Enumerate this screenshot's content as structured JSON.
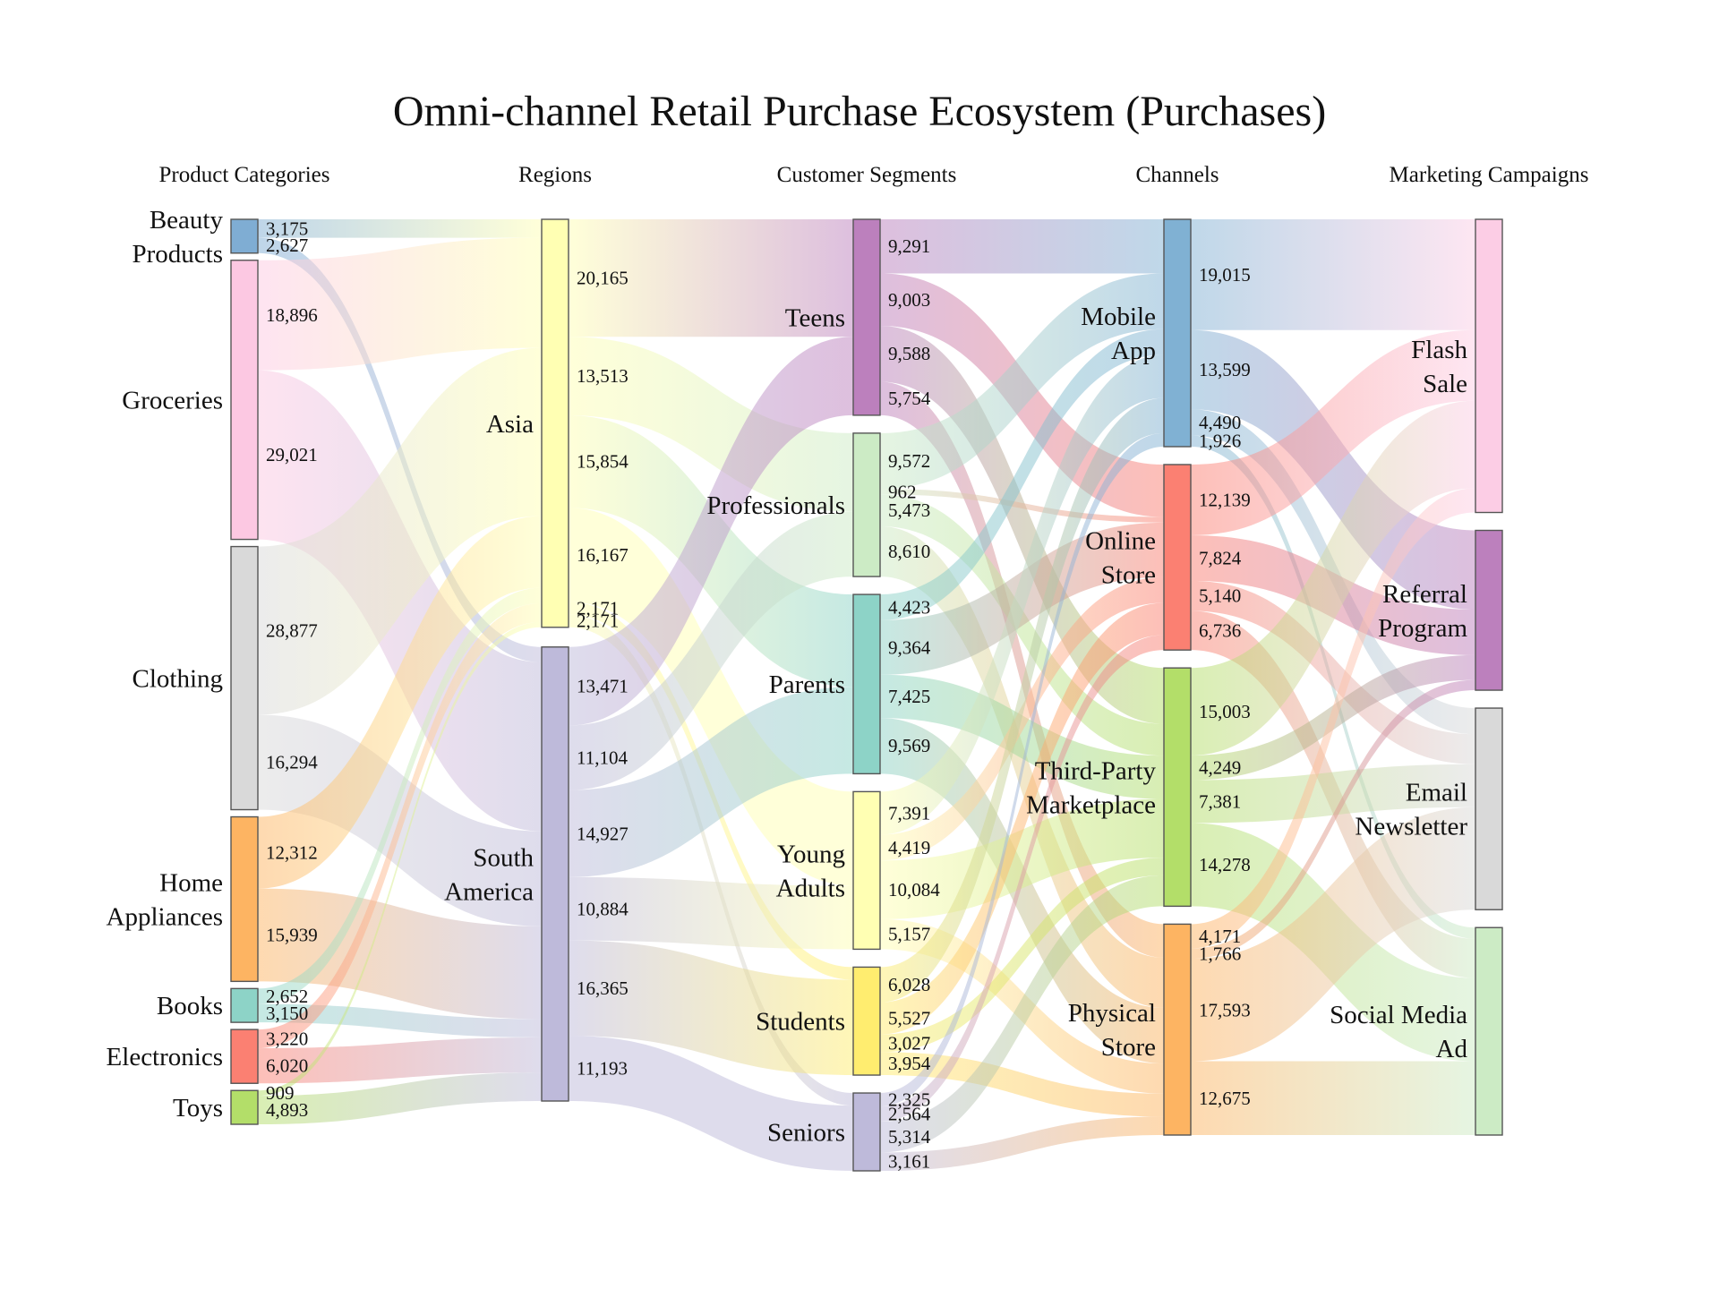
{
  "chart_data": {
    "type": "sankey",
    "title": "Omni-channel Retail Purchase Ecosystem (Purchases)",
    "stages": [
      "Product Categories",
      "Regions",
      "Customer Segments",
      "Channels",
      "Marketing Campaigns"
    ],
    "nodes": [
      {
        "id": "beauty",
        "label": "Beauty Products",
        "stage": 0,
        "color": "#7fadd3"
      },
      {
        "id": "groceries",
        "label": "Groceries",
        "stage": 0,
        "color": "#fcc8e2"
      },
      {
        "id": "clothing",
        "label": "Clothing",
        "stage": 0,
        "color": "#d9d9d9"
      },
      {
        "id": "home",
        "label": "Home Appliances",
        "stage": 0,
        "color": "#fdb462"
      },
      {
        "id": "books",
        "label": "Books",
        "stage": 0,
        "color": "#8dd3c7"
      },
      {
        "id": "electronics",
        "label": "Electronics",
        "stage": 0,
        "color": "#fb8072"
      },
      {
        "id": "toys",
        "label": "Toys",
        "stage": 0,
        "color": "#b3de69"
      },
      {
        "id": "asia",
        "label": "Asia",
        "stage": 1,
        "color": "#ffffb3"
      },
      {
        "id": "samerica",
        "label": "South America",
        "stage": 1,
        "color": "#bebada"
      },
      {
        "id": "teens",
        "label": "Teens",
        "stage": 2,
        "color": "#bc80bd"
      },
      {
        "id": "professionals",
        "label": "Professionals",
        "stage": 2,
        "color": "#ccebc5"
      },
      {
        "id": "parents",
        "label": "Parents",
        "stage": 2,
        "color": "#8dd3c7"
      },
      {
        "id": "youngadults",
        "label": "Young Adults",
        "stage": 2,
        "color": "#ffffb3"
      },
      {
        "id": "students",
        "label": "Students",
        "stage": 2,
        "color": "#ffed6f"
      },
      {
        "id": "seniors",
        "label": "Seniors",
        "stage": 2,
        "color": "#bebada"
      },
      {
        "id": "mobile",
        "label": "Mobile App",
        "stage": 3,
        "color": "#80b1d3"
      },
      {
        "id": "online",
        "label": "Online Store",
        "stage": 3,
        "color": "#fb8072"
      },
      {
        "id": "thirdparty",
        "label": "Third-Party Marketplace",
        "stage": 3,
        "color": "#b3de69"
      },
      {
        "id": "physical",
        "label": "Physical Store",
        "stage": 3,
        "color": "#fdb462"
      },
      {
        "id": "flash",
        "label": "Flash Sale",
        "stage": 4,
        "color": "#fccde5"
      },
      {
        "id": "referral",
        "label": "Referral Program",
        "stage": 4,
        "color": "#bc80bd"
      },
      {
        "id": "email",
        "label": "Email Newsletter",
        "stage": 4,
        "color": "#d9d9d9"
      },
      {
        "id": "social",
        "label": "Social Media Ad",
        "stage": 4,
        "color": "#ccebc5"
      }
    ],
    "links": [
      {
        "source": "beauty",
        "target": "asia",
        "value": 3175
      },
      {
        "source": "beauty",
        "target": "samerica",
        "value": 2627
      },
      {
        "source": "groceries",
        "target": "asia",
        "value": 18896
      },
      {
        "source": "groceries",
        "target": "samerica",
        "value": 29021
      },
      {
        "source": "clothing",
        "target": "asia",
        "value": 28877
      },
      {
        "source": "clothing",
        "target": "samerica",
        "value": 16294
      },
      {
        "source": "home",
        "target": "asia",
        "value": 12312
      },
      {
        "source": "home",
        "target": "samerica",
        "value": 15939
      },
      {
        "source": "books",
        "target": "asia",
        "value": 2652
      },
      {
        "source": "books",
        "target": "samerica",
        "value": 3150
      },
      {
        "source": "electronics",
        "target": "asia",
        "value": 3220
      },
      {
        "source": "electronics",
        "target": "samerica",
        "value": 6020
      },
      {
        "source": "toys",
        "target": "asia",
        "value": 909
      },
      {
        "source": "toys",
        "target": "samerica",
        "value": 4893
      },
      {
        "source": "asia",
        "target": "teens",
        "value": 20165
      },
      {
        "source": "asia",
        "target": "professionals",
        "value": 13513
      },
      {
        "source": "asia",
        "target": "parents",
        "value": 15854
      },
      {
        "source": "asia",
        "target": "youngadults",
        "value": 16167
      },
      {
        "source": "asia",
        "target": "students",
        "value": 2171
      },
      {
        "source": "asia",
        "target": "seniors",
        "value": 2171
      },
      {
        "source": "samerica",
        "target": "teens",
        "value": 13471
      },
      {
        "source": "samerica",
        "target": "professionals",
        "value": 11104
      },
      {
        "source": "samerica",
        "target": "parents",
        "value": 14927
      },
      {
        "source": "samerica",
        "target": "youngadults",
        "value": 10884
      },
      {
        "source": "samerica",
        "target": "students",
        "value": 16365
      },
      {
        "source": "samerica",
        "target": "seniors",
        "value": 11193
      },
      {
        "source": "teens",
        "target": "mobile",
        "value": 9291
      },
      {
        "source": "teens",
        "target": "online",
        "value": 9003
      },
      {
        "source": "teens",
        "target": "thirdparty",
        "value": 9588
      },
      {
        "source": "teens",
        "target": "physical",
        "value": 5754
      },
      {
        "source": "professionals",
        "target": "mobile",
        "value": 9572
      },
      {
        "source": "professionals",
        "target": "online",
        "value": 962
      },
      {
        "source": "professionals",
        "target": "thirdparty",
        "value": 5473
      },
      {
        "source": "professionals",
        "target": "physical",
        "value": 8610
      },
      {
        "source": "parents",
        "target": "mobile",
        "value": 4423
      },
      {
        "source": "parents",
        "target": "online",
        "value": 9364
      },
      {
        "source": "parents",
        "target": "thirdparty",
        "value": 7425
      },
      {
        "source": "parents",
        "target": "physical",
        "value": 9569
      },
      {
        "source": "youngadults",
        "target": "mobile",
        "value": 7391
      },
      {
        "source": "youngadults",
        "target": "online",
        "value": 4419
      },
      {
        "source": "youngadults",
        "target": "thirdparty",
        "value": 10084
      },
      {
        "source": "youngadults",
        "target": "physical",
        "value": 5157
      },
      {
        "source": "students",
        "target": "mobile",
        "value": 6028
      },
      {
        "source": "students",
        "target": "online",
        "value": 5527
      },
      {
        "source": "students",
        "target": "thirdparty",
        "value": 3027
      },
      {
        "source": "students",
        "target": "physical",
        "value": 3954
      },
      {
        "source": "seniors",
        "target": "mobile",
        "value": 2325
      },
      {
        "source": "seniors",
        "target": "online",
        "value": 2564
      },
      {
        "source": "seniors",
        "target": "thirdparty",
        "value": 5314
      },
      {
        "source": "seniors",
        "target": "physical",
        "value": 3161
      },
      {
        "source": "mobile",
        "target": "flash",
        "value": 19015
      },
      {
        "source": "mobile",
        "target": "referral",
        "value": 13599
      },
      {
        "source": "mobile",
        "target": "email",
        "value": 4490
      },
      {
        "source": "mobile",
        "target": "social",
        "value": 1926
      },
      {
        "source": "online",
        "target": "flash",
        "value": 12139
      },
      {
        "source": "online",
        "target": "referral",
        "value": 7824
      },
      {
        "source": "online",
        "target": "email",
        "value": 5140
      },
      {
        "source": "online",
        "target": "social",
        "value": 6736
      },
      {
        "source": "thirdparty",
        "target": "flash",
        "value": 15003
      },
      {
        "source": "thirdparty",
        "target": "referral",
        "value": 4249
      },
      {
        "source": "thirdparty",
        "target": "email",
        "value": 7381
      },
      {
        "source": "thirdparty",
        "target": "social",
        "value": 14278
      },
      {
        "source": "physical",
        "target": "flash",
        "value": 4171
      },
      {
        "source": "physical",
        "target": "referral",
        "value": 1766
      },
      {
        "source": "physical",
        "target": "email",
        "value": 17593
      },
      {
        "source": "physical",
        "target": "social",
        "value": 12675
      }
    ]
  }
}
